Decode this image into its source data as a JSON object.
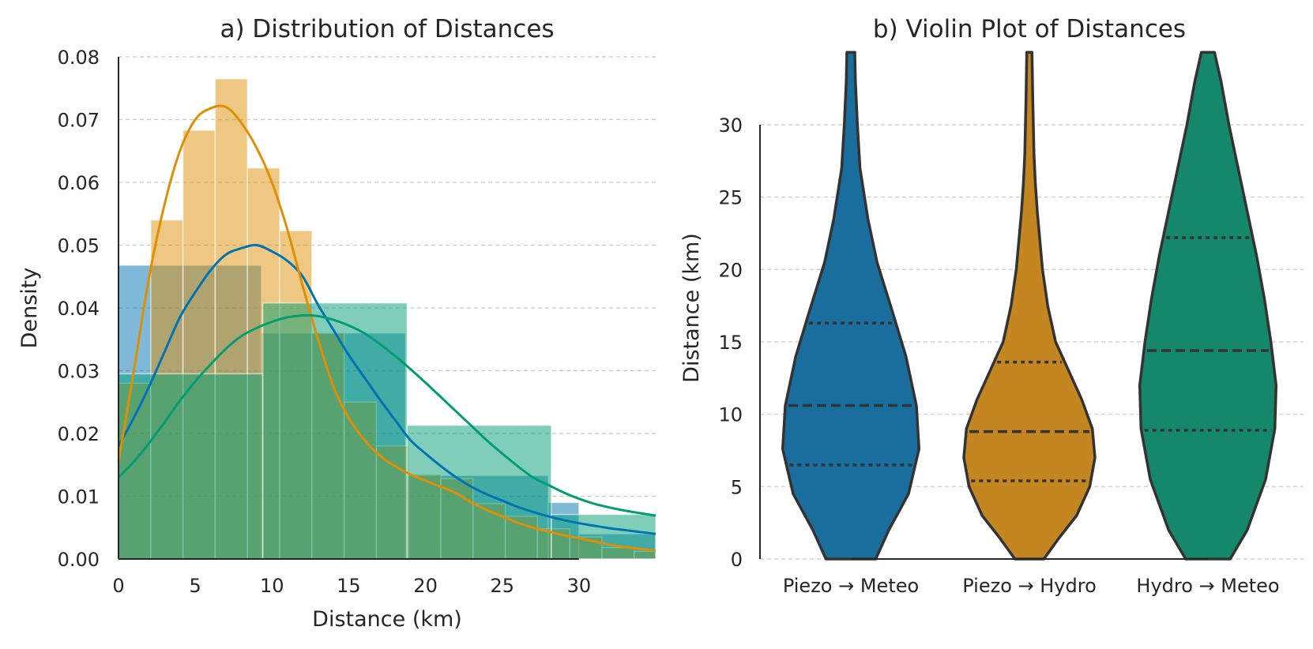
{
  "chart_data": [
    {
      "type": "histogram",
      "title": "a) Distribution of Distances",
      "xlabel": "Distance (km)",
      "ylabel": "Density",
      "xlim": [
        0,
        35
      ],
      "ylim": [
        0,
        0.08
      ],
      "x_ticks": [
        "0",
        "5",
        "10",
        "15",
        "20",
        "25",
        "30"
      ],
      "x_tick_values": [
        0,
        5,
        10,
        15,
        20,
        25,
        30
      ],
      "y_ticks": [
        "0.00",
        "0.01",
        "0.02",
        "0.03",
        "0.04",
        "0.05",
        "0.06",
        "0.07",
        "0.08"
      ],
      "y_tick_values": [
        0,
        0.01,
        0.02,
        0.03,
        0.04,
        0.05,
        0.06,
        0.07,
        0.08
      ],
      "grid": "y-dashed",
      "series": [
        {
          "name": "Piezo → Meteo",
          "color": "#0173b2",
          "bins": [
            [
              0,
              9.3,
              0.0468
            ],
            [
              9.3,
              18.7,
              0.036
            ],
            [
              18.7,
              28.0,
              0.0133
            ],
            [
              28.0,
              30.0,
              0.009
            ],
            [
              30.0,
              35.0,
              0.004
            ]
          ],
          "kde_x": [
            0,
            1,
            2,
            3,
            4,
            5,
            6,
            7,
            8,
            9,
            10,
            11,
            12,
            13,
            14,
            15,
            16,
            17,
            18,
            19,
            20,
            21,
            22,
            23,
            24,
            25,
            26,
            27,
            28,
            29,
            30,
            31,
            32,
            33,
            34,
            35
          ],
          "kde_y": [
            0.018,
            0.0225,
            0.0275,
            0.033,
            0.0385,
            0.0425,
            0.046,
            0.0485,
            0.0495,
            0.05,
            0.049,
            0.0475,
            0.045,
            0.0405,
            0.0365,
            0.0325,
            0.029,
            0.0255,
            0.0222,
            0.019,
            0.0168,
            0.0148,
            0.013,
            0.0115,
            0.0103,
            0.0093,
            0.0083,
            0.0075,
            0.0068,
            0.0062,
            0.0057,
            0.0053,
            0.0049,
            0.0046,
            0.0043,
            0.004
          ]
        },
        {
          "name": "Piezo → Hydro",
          "color": "#de8f05",
          "bins": [
            [
              0,
              2.1,
              0.028
            ],
            [
              2.1,
              4.2,
              0.054
            ],
            [
              4.2,
              6.3,
              0.0683
            ],
            [
              6.3,
              8.4,
              0.0765
            ],
            [
              8.4,
              10.5,
              0.0623
            ],
            [
              10.5,
              12.6,
              0.0523
            ],
            [
              12.6,
              14.7,
              0.036
            ],
            [
              14.7,
              16.8,
              0.025
            ],
            [
              16.8,
              18.9,
              0.018
            ],
            [
              18.9,
              21.0,
              0.0135
            ],
            [
              21.0,
              23.1,
              0.0128
            ],
            [
              23.1,
              25.2,
              0.0088
            ],
            [
              25.2,
              27.3,
              0.0068
            ],
            [
              27.3,
              29.4,
              0.0048
            ],
            [
              29.4,
              31.5,
              0.0035
            ],
            [
              31.5,
              33.6,
              0.0018
            ],
            [
              33.6,
              35.0,
              0.0012
            ]
          ],
          "kde_x": [
            0,
            1,
            2,
            3,
            4,
            5,
            6,
            7,
            8,
            9,
            10,
            11,
            12,
            13,
            14,
            15,
            16,
            17,
            18,
            19,
            20,
            21,
            22,
            23,
            24,
            25,
            26,
            27,
            28,
            29,
            30,
            31,
            32,
            33,
            34,
            35
          ],
          "kde_y": [
            0.0155,
            0.03,
            0.045,
            0.0565,
            0.065,
            0.07,
            0.0718,
            0.072,
            0.0695,
            0.0655,
            0.06,
            0.0525,
            0.0435,
            0.035,
            0.0275,
            0.0225,
            0.019,
            0.0165,
            0.0148,
            0.0135,
            0.0125,
            0.0115,
            0.0105,
            0.009,
            0.0078,
            0.0068,
            0.0058,
            0.005,
            0.0044,
            0.0038,
            0.0033,
            0.0028,
            0.0023,
            0.0019,
            0.0016,
            0.0013
          ]
        },
        {
          "name": "Hydro → Meteo",
          "color": "#029e73",
          "bins": [
            [
              0,
              9.4,
              0.0295
            ],
            [
              9.4,
              18.8,
              0.0408
            ],
            [
              18.8,
              28.2,
              0.0213
            ],
            [
              28.2,
              35.0,
              0.0071
            ]
          ],
          "kde_x": [
            0,
            1,
            2,
            3,
            4,
            5,
            6,
            7,
            8,
            9,
            10,
            11,
            12,
            13,
            14,
            15,
            16,
            17,
            18,
            19,
            20,
            21,
            22,
            23,
            24,
            25,
            26,
            27,
            28,
            29,
            30,
            31,
            32,
            33,
            34,
            35
          ],
          "kde_y": [
            0.013,
            0.0155,
            0.0185,
            0.0218,
            0.0252,
            0.0283,
            0.031,
            0.0335,
            0.0355,
            0.0368,
            0.0378,
            0.0385,
            0.0388,
            0.0387,
            0.0381,
            0.0372,
            0.036,
            0.0343,
            0.0324,
            0.0303,
            0.0281,
            0.0258,
            0.0235,
            0.0212,
            0.0189,
            0.0168,
            0.0148,
            0.013,
            0.0118,
            0.0106,
            0.0096,
            0.0088,
            0.0082,
            0.0077,
            0.0073,
            0.0069
          ]
        }
      ]
    },
    {
      "type": "violin",
      "title": "b) Violin Plot of Distances",
      "xlabel": "",
      "ylabel": "Distance (km)",
      "ylim": [
        0,
        35
      ],
      "y_ticks": [
        "0",
        "5",
        "10",
        "15",
        "20",
        "25",
        "30"
      ],
      "y_tick_values": [
        0,
        5,
        10,
        15,
        20,
        25,
        30
      ],
      "grid": "y-dashed",
      "categories": [
        "Piezo → Meteo",
        "Piezo → Hydro",
        "Hydro → Meteo"
      ],
      "series": [
        {
          "name": "Piezo → Meteo",
          "color": "#1a6e9e",
          "quartiles": [
            6.5,
            10.6,
            16.3
          ],
          "profile_y": [
            0,
            2,
            4.5,
            7.6,
            10.6,
            14,
            17,
            20.5,
            23.5,
            27,
            30,
            33,
            35
          ],
          "profile_halfwidth": [
            0.19,
            0.29,
            0.44,
            0.52,
            0.5,
            0.42,
            0.32,
            0.2,
            0.13,
            0.07,
            0.05,
            0.035,
            0.03
          ]
        },
        {
          "name": "Piezo → Hydro",
          "color": "#c48620",
          "quartiles": [
            5.4,
            8.8,
            13.6
          ],
          "profile_y": [
            0,
            1.5,
            3,
            5,
            7,
            9,
            11,
            13,
            15,
            17.5,
            20,
            22,
            24,
            26,
            28,
            30,
            32,
            35
          ],
          "profile_halfwidth": [
            0.11,
            0.23,
            0.36,
            0.46,
            0.5,
            0.48,
            0.4,
            0.3,
            0.2,
            0.14,
            0.1,
            0.08,
            0.06,
            0.045,
            0.035,
            0.03,
            0.025,
            0.02
          ]
        },
        {
          "name": "Hydro → Meteo",
          "color": "#148868",
          "quartiles": [
            8.9,
            14.4,
            22.2
          ],
          "profile_y": [
            0,
            2,
            5.5,
            9,
            12,
            15,
            18,
            21,
            24,
            27,
            30,
            33,
            35
          ],
          "profile_halfwidth": [
            0.17,
            0.3,
            0.44,
            0.51,
            0.52,
            0.48,
            0.43,
            0.37,
            0.3,
            0.23,
            0.16,
            0.1,
            0.05
          ]
        }
      ]
    }
  ]
}
